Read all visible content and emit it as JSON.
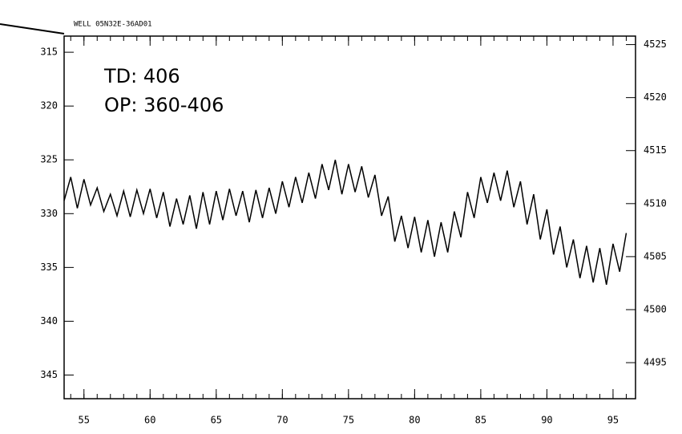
{
  "chart_data": {
    "type": "line",
    "title": "WELL 05N32E-36AD01",
    "annotations": [
      "TD: 406",
      "OP: 360-406"
    ],
    "x": [
      53.5,
      54,
      54.5,
      55,
      55.5,
      56,
      56.5,
      57,
      57.5,
      58,
      58.5,
      59,
      59.5,
      60,
      60.5,
      61,
      61.5,
      62,
      62.5,
      63,
      63.5,
      64,
      64.5,
      65,
      65.5,
      66,
      66.5,
      67,
      67.5,
      68,
      68.5,
      69,
      69.5,
      70,
      70.5,
      71,
      71.5,
      72,
      72.5,
      73,
      73.5,
      74,
      74.5,
      75,
      75.5,
      76,
      76.5,
      77,
      77.5,
      78,
      78.5,
      79,
      79.5,
      80,
      80.5,
      81,
      81.5,
      82,
      82.5,
      83,
      83.5,
      84,
      84.5,
      85,
      85.5,
      86,
      86.5,
      87,
      87.5,
      88,
      88.5,
      89,
      89.5,
      90,
      90.5,
      91,
      91.5,
      92,
      92.5,
      93,
      93.5,
      94,
      94.5,
      95,
      95.5,
      96
    ],
    "series": [
      {
        "color": "#000000",
        "values": [
          328.8,
          326.6,
          329.5,
          326.8,
          329.2,
          327.6,
          329.8,
          328.2,
          330.2,
          327.9,
          330.3,
          327.8,
          330.0,
          327.7,
          330.4,
          328.0,
          331.2,
          328.6,
          331.0,
          328.3,
          331.4,
          328.0,
          331.0,
          327.9,
          330.6,
          327.7,
          330.2,
          327.9,
          330.8,
          327.8,
          330.4,
          327.6,
          330.0,
          327.0,
          329.4,
          326.6,
          329.0,
          326.2,
          328.6,
          325.4,
          327.8,
          325.0,
          328.2,
          325.4,
          328.0,
          325.6,
          328.5,
          326.4,
          330.2,
          328.4,
          332.6,
          330.2,
          333.2,
          330.3,
          333.6,
          330.6,
          334.0,
          330.8,
          333.6,
          329.8,
          332.2,
          328.0,
          330.4,
          326.6,
          329.0,
          326.2,
          328.8,
          326.0,
          329.4,
          327.0,
          331.0,
          328.2,
          332.4,
          329.6,
          333.8,
          331.2,
          335.0,
          332.4,
          336.0,
          333.0,
          336.4,
          333.2,
          336.6,
          332.8,
          335.4,
          331.8
        ]
      }
    ],
    "xlim": [
      53.5,
      96.7
    ],
    "xticks": [
      55,
      60,
      65,
      70,
      75,
      80,
      85,
      90,
      95
    ],
    "ylim": [
      347.2,
      313.5
    ],
    "yticks": [
      315,
      320,
      325,
      330,
      335,
      340,
      345
    ],
    "y2lim": [
      4491.6,
      4525.8
    ],
    "y2ticks": [
      4525,
      4520,
      4515,
      4510,
      4505,
      4500,
      4495
    ]
  }
}
